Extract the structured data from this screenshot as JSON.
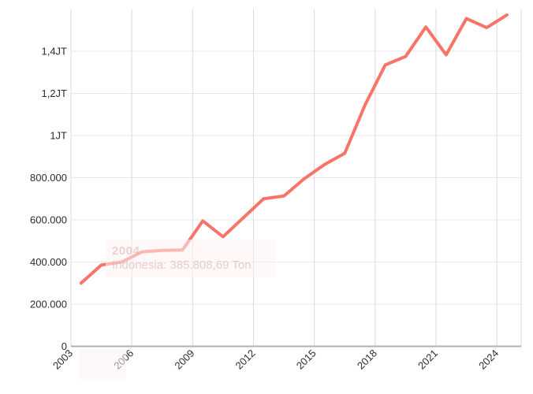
{
  "chart": {
    "tooltip_watermark": {
      "year": "2004",
      "value_text": "Indonesia: 385.808,69 Ton"
    },
    "colors": {
      "line": "#f87368",
      "grid_h": "#e7e7e7",
      "grid_v": "#d9d9d9",
      "axis": "#b0b0b0",
      "label": "#2b2b2b"
    }
  },
  "chart_data": {
    "type": "line",
    "title": "",
    "xlabel": "",
    "ylabel": "",
    "series": [
      {
        "name": "Indonesia",
        "unit": "Ton",
        "x": [
          2003,
          2004,
          2005,
          2006,
          2007,
          2008,
          2009,
          2010,
          2011,
          2012,
          2013,
          2014,
          2015,
          2016,
          2017,
          2018,
          2019,
          2020,
          2021,
          2022,
          2023,
          2024
        ],
        "values": [
          300000,
          385809,
          400000,
          448000,
          455000,
          457000,
          595000,
          520000,
          610000,
          700000,
          713000,
          795000,
          862000,
          916000,
          1145000,
          1335000,
          1375000,
          1515000,
          1383000,
          1555000,
          1512000,
          1572000
        ]
      }
    ],
    "ylim": [
      0,
      1600000
    ],
    "y_ticks": {
      "values": [
        0,
        200000,
        400000,
        600000,
        800000,
        1000000,
        1200000,
        1400000
      ],
      "labels": [
        "0",
        "200.000",
        "400.000",
        "600.000",
        "800.000",
        "1JT",
        "1,2JT",
        "1,4JT"
      ]
    },
    "x_ticks": {
      "years": [
        2003,
        2006,
        2009,
        2012,
        2015,
        2018,
        2021,
        2024
      ],
      "labels": [
        "2003",
        "2006",
        "2009",
        "2012",
        "2015",
        "2018",
        "2021",
        "2024"
      ]
    },
    "grid": true,
    "legend_position": "none",
    "x_label_rotation": -45
  }
}
